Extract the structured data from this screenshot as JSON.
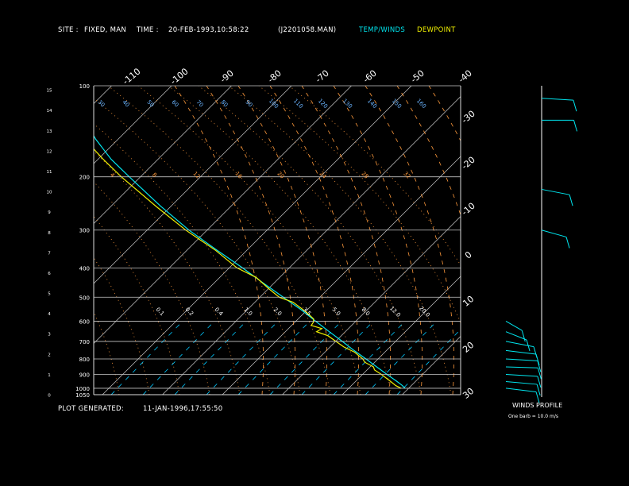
{
  "header": {
    "site_label": "SITE :",
    "site_value": "FIXED, MAN",
    "time_label": "TIME :",
    "time_value": "20-FEB-1993,10:58:22",
    "file": "(J2201058.MAN)",
    "temp_legend": "TEMP/WINDS",
    "dew_legend": "DEWPOINT"
  },
  "footer": {
    "plot_label": "PLOT GENERATED:",
    "plot_value": "11-JAN-1996,17:55:50"
  },
  "wind_panel": {
    "title": "WINDS PROFILE",
    "note": "One barb = 10.0 m/s"
  },
  "colors": {
    "temp": "#00e5ee",
    "dewpoint": "#f0f000",
    "isobar": "#c8c8c8",
    "isotherm": "#c8c8c8",
    "dry_adiabat": "#ff9a3c",
    "moist_adiabat": "#ff9a3c",
    "mixing_ratio": "#00c8ff",
    "wind": "#00e5ee"
  },
  "chart_data": {
    "type": "line",
    "pressure_labels": [
      "100",
      "200",
      "300",
      "400",
      "500",
      "600",
      "700",
      "800",
      "900",
      "1000",
      "1050"
    ],
    "km_labels": [
      "0",
      "1",
      "2",
      "3",
      "4",
      "5",
      "6",
      "7",
      "8",
      "9",
      "10",
      "11",
      "12",
      "13",
      "14",
      "15"
    ],
    "top_temp_labels": [
      "-110",
      "-100",
      "-90",
      "-80",
      "-70",
      "-60",
      "-50",
      "-40"
    ],
    "right_temp_labels": [
      "-30",
      "-20",
      "-10",
      "0",
      "10",
      "20",
      "30"
    ],
    "theta_labels": [
      "30",
      "40",
      "50",
      "60",
      "70",
      "80",
      "90",
      "100",
      "110",
      "120",
      "130",
      "140",
      "150",
      "160"
    ],
    "moist_labels": [
      "4",
      "8",
      "12",
      "16",
      "20",
      "24",
      "28",
      "32"
    ],
    "mixing_labels": [
      "0.1",
      "0.2",
      "0.4",
      "1.0",
      "2.0",
      "3.5",
      "5.0",
      "8.0",
      "12.0",
      "20.0"
    ],
    "temperature": [
      {
        "p": 1000,
        "t": -1.5
      },
      {
        "p": 975,
        "t": -2
      },
      {
        "p": 950,
        "t": -3
      },
      {
        "p": 900,
        "t": -5.5
      },
      {
        "p": 850,
        "t": -8
      },
      {
        "p": 800,
        "t": -10.5
      },
      {
        "p": 750,
        "t": -13.5
      },
      {
        "p": 700,
        "t": -16
      },
      {
        "p": 650,
        "t": -19
      },
      {
        "p": 600,
        "t": -22
      },
      {
        "p": 550,
        "t": -25
      },
      {
        "p": 500,
        "t": -29.5
      },
      {
        "p": 450,
        "t": -34.5
      },
      {
        "p": 400,
        "t": -39.5
      },
      {
        "p": 350,
        "t": -46
      },
      {
        "p": 300,
        "t": -53
      },
      {
        "p": 250,
        "t": -58
      },
      {
        "p": 200,
        "t": -62
      },
      {
        "p": 175,
        "t": -64
      },
      {
        "p": 150,
        "t": -63
      },
      {
        "p": 130,
        "t": -60
      },
      {
        "p": 120,
        "t": -62
      },
      {
        "p": 110,
        "t": -62
      },
      {
        "p": 100,
        "t": -62
      }
    ],
    "dewpoint": [
      {
        "p": 1000,
        "t": -4
      },
      {
        "p": 980,
        "t": -6
      },
      {
        "p": 950,
        "t": -7
      },
      {
        "p": 900,
        "t": -9
      },
      {
        "p": 870,
        "t": -11
      },
      {
        "p": 850,
        "t": -10
      },
      {
        "p": 820,
        "t": -13
      },
      {
        "p": 800,
        "t": -12.5
      },
      {
        "p": 760,
        "t": -14
      },
      {
        "p": 730,
        "t": -18
      },
      {
        "p": 700,
        "t": -20
      },
      {
        "p": 670,
        "t": -22
      },
      {
        "p": 650,
        "t": -27
      },
      {
        "p": 635,
        "t": -22
      },
      {
        "p": 620,
        "t": -27
      },
      {
        "p": 605,
        "t": -24
      },
      {
        "p": 590,
        "t": -22
      },
      {
        "p": 560,
        "t": -23
      },
      {
        "p": 520,
        "t": -26
      },
      {
        "p": 500,
        "t": -32
      },
      {
        "p": 470,
        "t": -34
      },
      {
        "p": 430,
        "t": -36
      },
      {
        "p": 400,
        "t": -43
      },
      {
        "p": 350,
        "t": -47
      },
      {
        "p": 300,
        "t": -55
      },
      {
        "p": 250,
        "t": -61
      },
      {
        "p": 200,
        "t": -67
      },
      {
        "p": 175,
        "t": -69
      },
      {
        "p": 150,
        "t": -70
      },
      {
        "p": 130,
        "t": -69
      },
      {
        "p": 115,
        "t": -67
      },
      {
        "p": 100,
        "t": -68
      }
    ],
    "winds": [
      {
        "p": 1000,
        "dir": 290,
        "spd": 15
      },
      {
        "p": 950,
        "dir": 285,
        "spd": 20
      },
      {
        "p": 900,
        "dir": 280,
        "spd": 25
      },
      {
        "p": 850,
        "dir": 275,
        "spd": 30
      },
      {
        "p": 800,
        "dir": 280,
        "spd": 35
      },
      {
        "p": 750,
        "dir": 290,
        "spd": 20
      },
      {
        "p": 700,
        "dir": 300,
        "spd": 20
      },
      {
        "p": 650,
        "dir": 320,
        "spd": 15
      },
      {
        "p": 600,
        "dir": 330,
        "spd": 10
      },
      {
        "p": 300,
        "dir": 310,
        "spd": 25
      },
      {
        "p": 220,
        "dir": 300,
        "spd": 20
      },
      {
        "p": 130,
        "dir": 270,
        "spd": 30
      },
      {
        "p": 110,
        "dir": 280,
        "spd": 25
      }
    ]
  }
}
